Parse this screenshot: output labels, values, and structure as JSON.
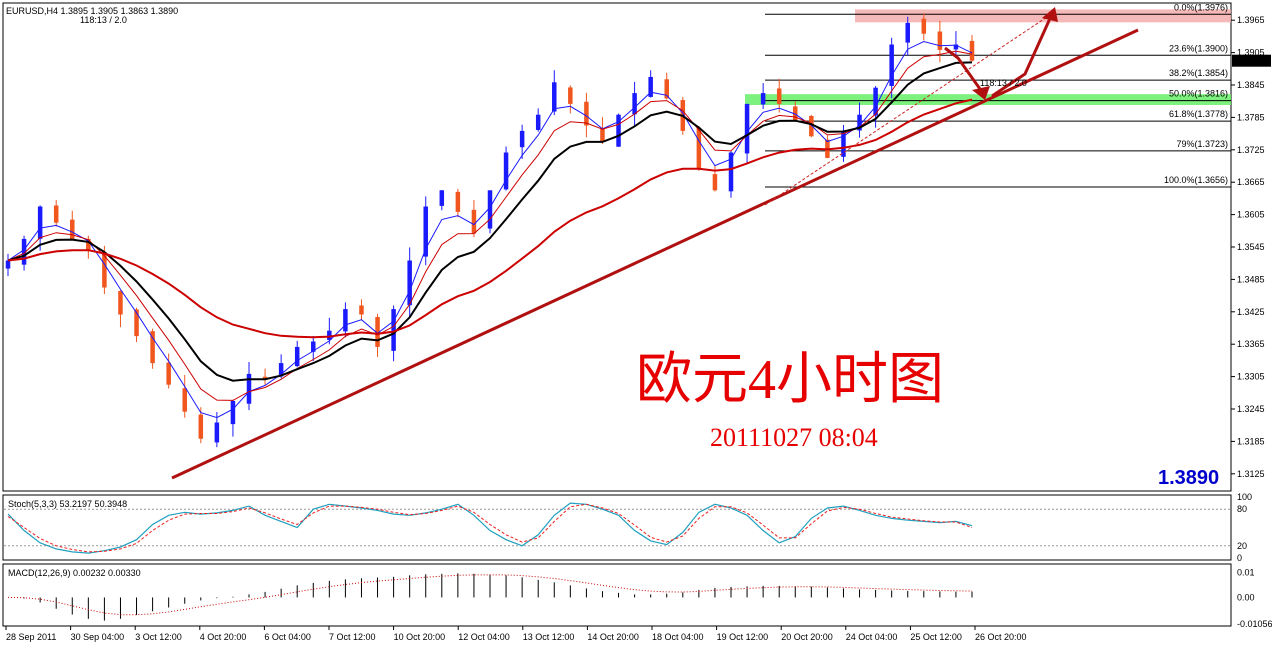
{
  "header": {
    "symbol_line": "EURUSD,H4  1.3895 1.3905 1.3863 1.3890",
    "sub_line": "118:13 / 2.0"
  },
  "overlay": {
    "title": "欧元4小时图",
    "timestamp": "20111027 08:04",
    "last_price": "1.3890",
    "countdown": "118:13 / 2.0"
  },
  "colors": {
    "bull": "#1a1aff",
    "bear": "#f0561e",
    "ma_black": "#000000",
    "ma_red": "#cc0000",
    "trendline": "#b01010",
    "resistance_zone": "#f4a8a8",
    "support_zone": "#66ee66",
    "stoch_main": "#20a0c0",
    "stoch_signal": "#ee2020"
  },
  "chart_data": [
    {
      "type": "candlestick",
      "panel": "price",
      "ylim": [
        1.3095,
        1.3995
      ],
      "y_ticks": [
        "1.3965",
        "1.3905",
        "1.3845",
        "1.3785",
        "1.3725",
        "1.3665",
        "1.3605",
        "1.3545",
        "1.3485",
        "1.3425",
        "1.3365",
        "1.3305",
        "1.3245",
        "1.3185",
        "1.3125"
      ],
      "x_ticks": [
        "28 Sep 2011",
        "30 Sep 04:00",
        "3 Oct 12:00",
        "4 Oct 20:00",
        "6 Oct 04:00",
        "7 Oct 12:00",
        "10 Oct 20:00",
        "12 Oct 04:00",
        "13 Oct 12:00",
        "14 Oct 20:00",
        "18 Oct 04:00",
        "19 Oct 12:00",
        "20 Oct 20:00",
        "24 Oct 04:00",
        "25 Oct 12:00",
        "26 Oct 20:00"
      ],
      "close_path": [
        1.352,
        1.356,
        1.362,
        1.359,
        1.356,
        1.354,
        1.347,
        1.342,
        1.338,
        1.333,
        1.329,
        1.324,
        1.319,
        1.322,
        1.326,
        1.331,
        1.33,
        1.333,
        1.336,
        1.337,
        1.339,
        1.343,
        1.342,
        1.336,
        1.343,
        1.352,
        1.362,
        1.365,
        1.361,
        1.357,
        1.365,
        1.372,
        1.376,
        1.379,
        1.385,
        1.381,
        1.377,
        1.374,
        1.379,
        1.383,
        1.386,
        1.382,
        1.376,
        1.369,
        1.365,
        1.372,
        1.381,
        1.383,
        1.381,
        1.378,
        1.375,
        1.371,
        1.376,
        1.379,
        1.384,
        1.392,
        1.396,
        1.394,
        1.391,
        1.392,
        1.389
      ],
      "fibonacci": [
        {
          "label": "0.0%(1.3976)",
          "price": 1.3976
        },
        {
          "label": "23.6%(1.3900)",
          "price": 1.39
        },
        {
          "label": "38.2%(1.3854)",
          "price": 1.3854
        },
        {
          "label": "50.0%(1.3816)",
          "price": 1.3816
        },
        {
          "label": "61.8%(1.3778)",
          "price": 1.3778
        },
        {
          "label": "79%(1.3723)",
          "price": 1.3723
        },
        {
          "label": "100.0%(1.3656)",
          "price": 1.3656
        }
      ],
      "resistance_zone": [
        1.3961,
        1.3985
      ],
      "support_zone": [
        1.3808,
        1.3828
      ],
      "last_price": 1.389
    },
    {
      "type": "line",
      "panel": "stochastic",
      "title": "Stoch(5,3,3) 53.2197 50.3948",
      "levels": [
        "100",
        "80",
        "20",
        "0"
      ],
      "main": [
        72,
        45,
        25,
        15,
        10,
        8,
        12,
        18,
        30,
        55,
        70,
        75,
        72,
        74,
        78,
        85,
        70,
        60,
        50,
        80,
        88,
        85,
        82,
        78,
        72,
        70,
        74,
        80,
        88,
        70,
        45,
        30,
        20,
        38,
        70,
        90,
        88,
        80,
        70,
        45,
        28,
        22,
        42,
        75,
        88,
        82,
        70,
        45,
        25,
        35,
        65,
        82,
        85,
        78,
        70,
        65,
        62,
        60,
        58,
        60,
        53
      ],
      "signal": [
        68,
        50,
        32,
        20,
        14,
        10,
        11,
        15,
        24,
        45,
        62,
        72,
        73,
        73,
        76,
        82,
        74,
        64,
        55,
        74,
        85,
        85,
        83,
        80,
        75,
        71,
        73,
        78,
        85,
        75,
        55,
        38,
        26,
        33,
        60,
        84,
        88,
        82,
        73,
        54,
        34,
        26,
        36,
        65,
        84,
        84,
        74,
        54,
        33,
        33,
        56,
        77,
        83,
        80,
        73,
        67,
        64,
        61,
        59,
        59,
        50
      ]
    },
    {
      "type": "bar",
      "panel": "macd",
      "title": "MACD(12,26,9) 0.00232 0.00330",
      "levels": [
        "0.01",
        "0.00",
        "-0.01056"
      ],
      "ylim": [
        -0.01056,
        0.0125
      ],
      "values": [
        0.0,
        -0.0004,
        -0.002,
        -0.0045,
        -0.0068,
        -0.0085,
        -0.0092,
        -0.0085,
        -0.007,
        -0.0055,
        -0.004,
        -0.0025,
        -0.0012,
        -0.0003,
        0.0003,
        0.0012,
        0.0022,
        0.0035,
        0.0048,
        0.0058,
        0.0066,
        0.0072,
        0.0076,
        0.0079,
        0.0082,
        0.0088,
        0.0092,
        0.0094,
        0.0096,
        0.0094,
        0.0091,
        0.0088,
        0.008,
        0.007,
        0.006,
        0.0048,
        0.0036,
        0.0025,
        0.0018,
        0.0012,
        0.0012,
        0.0015,
        0.002,
        0.003,
        0.0038,
        0.0042,
        0.0044,
        0.0046,
        0.0046,
        0.0045,
        0.0043,
        0.004,
        0.0036,
        0.0032,
        0.003,
        0.0028,
        0.0026,
        0.0025,
        0.0024,
        0.0023,
        0.0023
      ]
    }
  ]
}
